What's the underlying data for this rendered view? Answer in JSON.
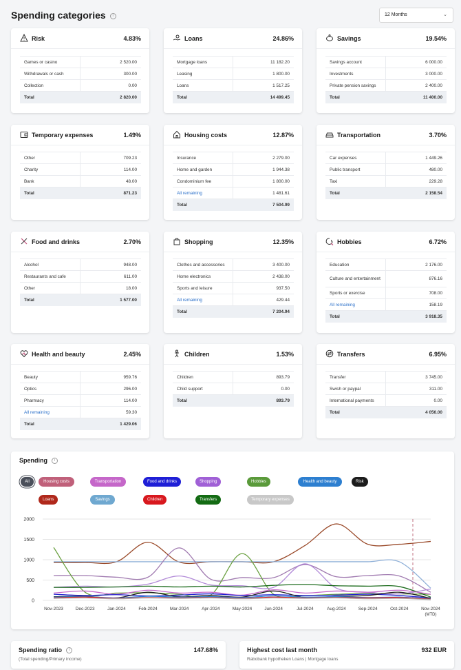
{
  "header": {
    "title": "Spending categories",
    "period": "12 Months"
  },
  "categories": [
    {
      "name": "Risk",
      "icon": "warning-icon",
      "pct": "4.83%",
      "rows": [
        [
          "Games or casino",
          "2 520.00"
        ],
        [
          "Withdrawals or cash",
          "300.00"
        ],
        [
          "Collection",
          "0.00"
        ]
      ],
      "total": [
        "Total",
        "2 820.00"
      ]
    },
    {
      "name": "Loans",
      "icon": "loan-hand-icon",
      "pct": "24.86%",
      "rows": [
        [
          "Mortgage loans",
          "11 182.20"
        ],
        [
          "Leasing",
          "1 800.00"
        ],
        [
          "Loans",
          "1 517.25"
        ]
      ],
      "total": [
        "Total",
        "14 499.45"
      ]
    },
    {
      "name": "Savings",
      "icon": "piggy-bank-icon",
      "pct": "19.54%",
      "rows": [
        [
          "Savings account",
          "6 000.00"
        ],
        [
          "Investments",
          "3 000.00"
        ],
        [
          "Private pension savings",
          "2 400.00"
        ]
      ],
      "total": [
        "Total",
        "11 400.00"
      ]
    },
    {
      "name": "Temporary expenses",
      "icon": "wallet-icon",
      "pct": "1.49%",
      "rows": [
        [
          "Other",
          "709.23"
        ],
        [
          "Charity",
          "114.00"
        ],
        [
          "Bank",
          "48.00"
        ]
      ],
      "total": [
        "Total",
        "871.23"
      ]
    },
    {
      "name": "Housing costs",
      "icon": "house-icon",
      "pct": "12.87%",
      "rows": [
        [
          "Insurance",
          "2 279.00"
        ],
        [
          "Home and garden",
          "1 944.38"
        ],
        [
          "Condominium fee",
          "1 800.00"
        ],
        [
          "All remaining",
          "1 481.61"
        ]
      ],
      "total": [
        "Total",
        "7 504.99"
      ]
    },
    {
      "name": "Transportation",
      "icon": "car-icon",
      "pct": "3.70%",
      "rows": [
        [
          "Car expenses",
          "1 449.26"
        ],
        [
          "Public transport",
          "480.00"
        ],
        [
          "Taxi",
          "229.28"
        ]
      ],
      "total": [
        "Total",
        "2 158.54"
      ]
    },
    {
      "name": "Food and drinks",
      "icon": "utensils-icon",
      "pct": "2.70%",
      "rows": [
        [
          "Alcohol",
          "948.00"
        ],
        [
          "Restaurants and cafe",
          "611.00"
        ],
        [
          "Other",
          "18.00"
        ]
      ],
      "total": [
        "Total",
        "1 577.00"
      ]
    },
    {
      "name": "Shopping",
      "icon": "shopping-bag-icon",
      "pct": "12.35%",
      "rows": [
        [
          "Clothes and accessories",
          "3 400.00"
        ],
        [
          "Home electronics",
          "2 438.00"
        ],
        [
          "Sports and leisure",
          "937.50"
        ],
        [
          "All remaining",
          "429.44"
        ]
      ],
      "total": [
        "Total",
        "7 204.94"
      ]
    },
    {
      "name": "Hobbies",
      "icon": "palette-icon",
      "pct": "6.72%",
      "rows": [
        [
          "Education",
          "2 176.00"
        ],
        [
          "Culture and entertainment",
          "876.16"
        ],
        [
          "Sports or exercise",
          "708.00"
        ],
        [
          "All remaining",
          "158.19"
        ]
      ],
      "total": [
        "Total",
        "3 918.35"
      ]
    },
    {
      "name": "Health and beauty",
      "icon": "heart-pulse-icon",
      "pct": "2.45%",
      "rows": [
        [
          "Beauty",
          "959.76"
        ],
        [
          "Optics",
          "296.00"
        ],
        [
          "Pharmacy",
          "114.00"
        ],
        [
          "All remaining",
          "59.30"
        ]
      ],
      "total": [
        "Total",
        "1 429.06"
      ]
    },
    {
      "name": "Children",
      "icon": "child-icon",
      "pct": "1.53%",
      "rows": [
        [
          "Children",
          "893.79"
        ],
        [
          "Child support",
          "0.00"
        ]
      ],
      "total": [
        "Total",
        "893.79"
      ]
    },
    {
      "name": "Transfers",
      "icon": "transfer-icon",
      "pct": "6.95%",
      "rows": [
        [
          "Transfer",
          "3 745.00"
        ],
        [
          "Swish or paypal",
          "311.00"
        ],
        [
          "International payments",
          "0.00"
        ]
      ],
      "total": [
        "Total",
        "4 056.00"
      ]
    }
  ],
  "spending": {
    "title": "Spending",
    "chips": [
      {
        "label": "All",
        "color": "#4a4f5a"
      },
      {
        "label": "Housing costs",
        "color": "#c0607a"
      },
      {
        "label": "Transportation",
        "color": "#c567c9"
      },
      {
        "label": "Food and drinks",
        "color": "#1f1fd6"
      },
      {
        "label": "Shopping",
        "color": "#a060d6"
      },
      {
        "label": "Hobbies",
        "color": "#5a9a3a"
      },
      {
        "label": "Health and beauty",
        "color": "#2d7fd0"
      },
      {
        "label": "Risk",
        "color": "#1c1c1c"
      },
      {
        "label": "Loans",
        "color": "#b0281b"
      },
      {
        "label": "Savings",
        "color": "#6fa8d0"
      },
      {
        "label": "Children",
        "color": "#d8181e"
      },
      {
        "label": "Transfers",
        "color": "#136b13"
      },
      {
        "label": "Temporary expenses",
        "color": "#c8c8c8"
      }
    ]
  },
  "chart_data": {
    "type": "line",
    "title": "Spending",
    "categories": [
      "Nov-2023",
      "Dec-2023",
      "Jan-2024",
      "Feb-2024",
      "Mar-2024",
      "Apr-2024",
      "May-2024",
      "Jun-2024",
      "Jul-2024",
      "Aug-2024",
      "Sep-2024",
      "Oct-2024",
      "Nov-2024"
    ],
    "category_sublabels": {
      "Nov-2024": "(MTD)"
    },
    "ylim": [
      0,
      2000
    ],
    "yticks": [
      0,
      500,
      1000,
      1500,
      2000
    ],
    "marker_line": "Nov-2024",
    "series": [
      {
        "name": "Loans",
        "color": "#9a4a2a",
        "values": [
          930,
          930,
          950,
          1430,
          940,
          950,
          950,
          950,
          1350,
          1880,
          1380,
          1380,
          1450
        ]
      },
      {
        "name": "Savings",
        "color": "#8fb0d8",
        "values": [
          950,
          950,
          950,
          950,
          950,
          950,
          950,
          950,
          950,
          950,
          950,
          950,
          300
        ]
      },
      {
        "name": "Housing costs",
        "color": "#a07ab0",
        "values": [
          610,
          610,
          570,
          570,
          1290,
          520,
          560,
          560,
          880,
          580,
          610,
          600,
          200
        ]
      },
      {
        "name": "Hobbies",
        "color": "#6aa040",
        "values": [
          1300,
          200,
          180,
          190,
          150,
          130,
          1150,
          150,
          120,
          150,
          170,
          160,
          150
        ]
      },
      {
        "name": "Shopping",
        "color": "#b28ad8",
        "values": [
          320,
          350,
          330,
          400,
          600,
          380,
          360,
          320,
          900,
          300,
          200,
          160,
          280
        ]
      },
      {
        "name": "Transfers",
        "color": "#1a6a1a",
        "values": [
          320,
          320,
          330,
          350,
          330,
          350,
          330,
          370,
          390,
          360,
          350,
          340,
          80
        ]
      },
      {
        "name": "Transportation",
        "color": "#c567c9",
        "values": [
          180,
          230,
          150,
          250,
          180,
          200,
          130,
          260,
          180,
          230,
          200,
          250,
          150
        ]
      },
      {
        "name": "Food and drinks",
        "color": "#2020d0",
        "values": [
          150,
          120,
          140,
          110,
          130,
          160,
          120,
          140,
          120,
          130,
          150,
          120,
          60
        ]
      },
      {
        "name": "Risk",
        "color": "#222222",
        "values": [
          90,
          100,
          60,
          200,
          90,
          120,
          80,
          230,
          70,
          100,
          120,
          200,
          50
        ]
      },
      {
        "name": "Health and beauty",
        "color": "#2d7fd0",
        "values": [
          80,
          90,
          60,
          100,
          80,
          90,
          70,
          110,
          80,
          90,
          70,
          80,
          40
        ]
      },
      {
        "name": "Children",
        "color": "#d8181e",
        "values": [
          60,
          80,
          50,
          70,
          60,
          70,
          50,
          80,
          60,
          70,
          60,
          70,
          30
        ]
      },
      {
        "name": "Temporary expenses",
        "color": "#b0b0b0",
        "values": [
          50,
          60,
          40,
          60,
          50,
          60,
          40,
          60,
          50,
          60,
          40,
          50,
          20
        ]
      }
    ]
  },
  "footer": {
    "ratio_title": "Spending ratio",
    "ratio_sub": "(Total spending/Primary income)",
    "ratio_val": "147.68%",
    "highest_title": "Highest cost last month",
    "highest_sub": "Rabobank hypotheken Loans | Mortgage loans",
    "highest_val": "932 EUR"
  }
}
